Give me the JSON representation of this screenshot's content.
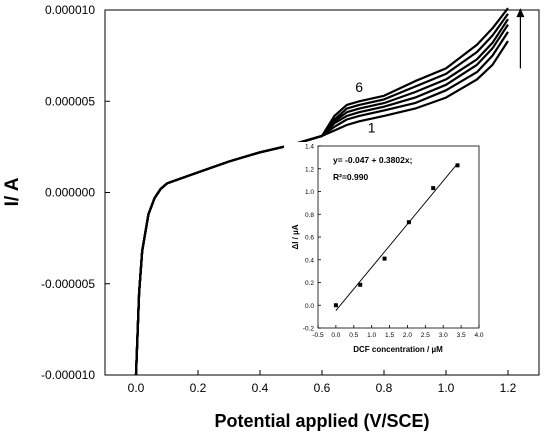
{
  "chart_data": [
    {
      "type": "line",
      "title": "",
      "xlabel": "Potential applied (V/SCE)",
      "ylabel": "I/ A",
      "xlim": [
        -0.1,
        1.3
      ],
      "ylim": [
        -1e-05,
        1e-05
      ],
      "x_ticks": [
        0.0,
        0.2,
        0.4,
        0.6,
        0.8,
        1.0,
        1.2
      ],
      "x_tick_labels": [
        "0.0",
        "0.2",
        "0.4",
        "0.6",
        "0.8",
        "1.0",
        "1.2"
      ],
      "y_ticks": [
        -1e-05,
        -5e-06,
        0.0,
        5e-06,
        1e-05
      ],
      "y_tick_labels": [
        "-0.000010",
        "-0.000005",
        "0.000000",
        "0.000005",
        "0.000010"
      ],
      "grid": false,
      "annotations": [
        {
          "text": "6",
          "x": 0.72,
          "y": 5.5e-06
        },
        {
          "text": "1",
          "x": 0.76,
          "y": 3.3e-06
        }
      ],
      "arrow": {
        "x": 1.24,
        "from_y": 6.8e-06,
        "to_y": 1.01e-05
      },
      "series": [
        {
          "x": [
            0.0,
            0.01,
            0.02,
            0.04,
            0.06,
            0.08,
            0.1,
            0.15,
            0.2,
            0.3,
            0.4,
            0.5,
            0.6,
            0.64,
            0.68,
            0.72,
            0.8,
            0.9,
            1.0,
            1.1,
            1.15,
            1.2
          ],
          "y": [
            -1e-05,
            -5.5e-06,
            -3.2e-06,
            -1.2e-06,
            -3e-07,
            2e-07,
            5e-07,
            8e-07,
            1.1e-06,
            1.7e-06,
            2.2e-06,
            2.6e-06,
            3.1e-06,
            3.4e-06,
            3.7e-06,
            3.9e-06,
            4.2e-06,
            4.6e-06,
            5.2e-06,
            6.2e-06,
            7e-06,
            8.3e-06
          ]
        },
        {
          "x": [
            0.0,
            0.01,
            0.02,
            0.04,
            0.06,
            0.08,
            0.1,
            0.15,
            0.2,
            0.3,
            0.4,
            0.5,
            0.6,
            0.64,
            0.68,
            0.72,
            0.8,
            0.9,
            1.0,
            1.1,
            1.15,
            1.2
          ],
          "y": [
            -1e-05,
            -5.5e-06,
            -3.2e-06,
            -1.2e-06,
            -3e-07,
            2e-07,
            5e-07,
            8e-07,
            1.1e-06,
            1.7e-06,
            2.2e-06,
            2.6e-06,
            3.1e-06,
            3.6e-06,
            4e-06,
            4.2e-06,
            4.5e-06,
            4.9e-06,
            5.6e-06,
            6.6e-06,
            7.5e-06,
            8.8e-06
          ]
        },
        {
          "x": [
            0.0,
            0.01,
            0.02,
            0.04,
            0.06,
            0.08,
            0.1,
            0.15,
            0.2,
            0.3,
            0.4,
            0.5,
            0.6,
            0.64,
            0.68,
            0.72,
            0.8,
            0.9,
            1.0,
            1.1,
            1.15,
            1.2
          ],
          "y": [
            -1e-05,
            -5.5e-06,
            -3.2e-06,
            -1.2e-06,
            -3e-07,
            2e-07,
            5e-07,
            8e-07,
            1.1e-06,
            1.7e-06,
            2.2e-06,
            2.6e-06,
            3.1e-06,
            3.8e-06,
            4.2e-06,
            4.4e-06,
            4.7e-06,
            5.2e-06,
            5.9e-06,
            7e-06,
            7.9e-06,
            9.2e-06
          ]
        },
        {
          "x": [
            0.0,
            0.01,
            0.02,
            0.04,
            0.06,
            0.08,
            0.1,
            0.15,
            0.2,
            0.3,
            0.4,
            0.5,
            0.6,
            0.64,
            0.68,
            0.72,
            0.8,
            0.9,
            1.0,
            1.1,
            1.15,
            1.2
          ],
          "y": [
            -1e-05,
            -5.5e-06,
            -3.2e-06,
            -1.2e-06,
            -3e-07,
            2e-07,
            5e-07,
            8e-07,
            1.1e-06,
            1.7e-06,
            2.2e-06,
            2.6e-06,
            3.1e-06,
            3.9e-06,
            4.4e-06,
            4.6e-06,
            4.9e-06,
            5.5e-06,
            6.2e-06,
            7.3e-06,
            8.2e-06,
            9.5e-06
          ]
        },
        {
          "x": [
            0.0,
            0.01,
            0.02,
            0.04,
            0.06,
            0.08,
            0.1,
            0.15,
            0.2,
            0.3,
            0.4,
            0.5,
            0.6,
            0.64,
            0.68,
            0.72,
            0.8,
            0.9,
            1.0,
            1.1,
            1.15,
            1.2
          ],
          "y": [
            -1e-05,
            -5.5e-06,
            -3.2e-06,
            -1.2e-06,
            -3e-07,
            2e-07,
            5e-07,
            8e-07,
            1.1e-06,
            1.7e-06,
            2.2e-06,
            2.6e-06,
            3.1e-06,
            4e-06,
            4.6e-06,
            4.8e-06,
            5.1e-06,
            5.8e-06,
            6.5e-06,
            7.7e-06,
            8.6e-06,
            9.8e-06
          ]
        },
        {
          "x": [
            0.0,
            0.01,
            0.02,
            0.04,
            0.06,
            0.08,
            0.1,
            0.15,
            0.2,
            0.3,
            0.4,
            0.5,
            0.6,
            0.64,
            0.68,
            0.72,
            0.8,
            0.9,
            1.0,
            1.1,
            1.15,
            1.2
          ],
          "y": [
            -1e-05,
            -5.5e-06,
            -3.2e-06,
            -1.2e-06,
            -3e-07,
            2e-07,
            5e-07,
            8e-07,
            1.1e-06,
            1.7e-06,
            2.2e-06,
            2.6e-06,
            3.1e-06,
            4.2e-06,
            4.8e-06,
            5e-06,
            5.3e-06,
            6.1e-06,
            6.8e-06,
            8.1e-06,
            9e-06,
            1.01e-05
          ]
        }
      ]
    },
    {
      "type": "scatter",
      "title": "",
      "xlabel": "DCF concentration / µM",
      "ylabel": "ΔI / µA",
      "xlim": [
        -0.5,
        4.0
      ],
      "ylim": [
        -0.2,
        1.4
      ],
      "x_ticks": [
        -0.5,
        0.0,
        0.5,
        1.0,
        1.5,
        2.0,
        2.5,
        3.0,
        3.5,
        4.0
      ],
      "x_tick_labels": [
        "-0.5",
        "0.0",
        "0.5",
        "1.0",
        "1.5",
        "2.0",
        "2.5",
        "3.0",
        "3.5",
        "4.0"
      ],
      "y_ticks": [
        -0.2,
        0.0,
        0.2,
        0.4,
        0.6,
        0.8,
        1.0,
        1.2,
        1.4
      ],
      "y_tick_labels": [
        "-0.2",
        "0.0",
        "0.2",
        "0.4",
        "0.6",
        "0.8",
        "1.0",
        "1.2",
        "1.4"
      ],
      "equation": "y= -0.047 + 0.3802x;",
      "r2_label": "R²=0.990",
      "fit": {
        "intercept": -0.047,
        "slope": 0.3802,
        "x_range": [
          0.0,
          3.4
        ]
      },
      "x": [
        0.0,
        0.68,
        1.36,
        2.04,
        2.72,
        3.4
      ],
      "y": [
        0.0,
        0.18,
        0.41,
        0.73,
        1.03,
        1.23
      ]
    }
  ]
}
